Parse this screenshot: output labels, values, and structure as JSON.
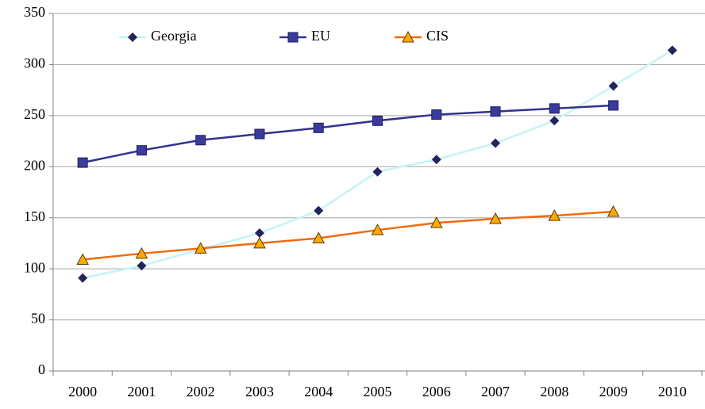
{
  "chart_data": {
    "type": "line",
    "categories": [
      "2000",
      "2001",
      "2002",
      "2003",
      "2004",
      "2005",
      "2006",
      "2007",
      "2008",
      "2009",
      "2010"
    ],
    "series": [
      {
        "name": "Georgia",
        "color": "#c4f4f4",
        "marker": "diamond",
        "marker_color": "#23235e",
        "values": [
          91,
          103,
          119,
          135,
          157,
          195,
          207,
          223,
          245,
          279,
          314
        ]
      },
      {
        "name": "EU",
        "color": "#32328f",
        "marker": "square",
        "marker_color": "#3b3b9e",
        "values": [
          204,
          216,
          226,
          232,
          238,
          245,
          251,
          254,
          257,
          260,
          null
        ]
      },
      {
        "name": "CIS",
        "color": "#f06a10",
        "marker": "triangle",
        "marker_color": "#ffaa00",
        "values": [
          109,
          115,
          120,
          125,
          130,
          138,
          145,
          149,
          152,
          156,
          null
        ]
      }
    ],
    "ylim": [
      0,
      350
    ],
    "yticks": [
      0,
      50,
      100,
      150,
      200,
      250,
      300,
      350
    ],
    "grid": true,
    "legend": "top"
  }
}
